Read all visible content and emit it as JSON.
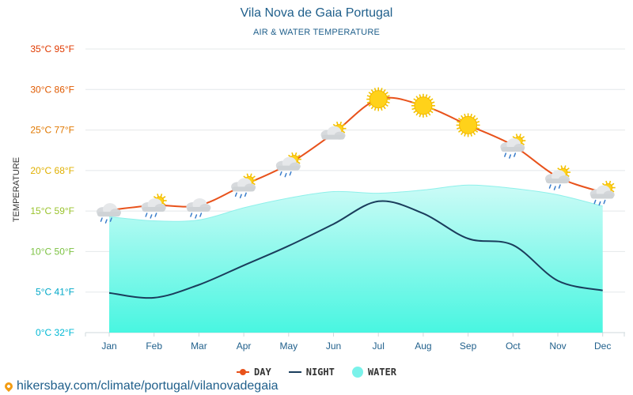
{
  "chart_data": {
    "type": "line",
    "title": "Vila Nova de Gaia Portugal",
    "subtitle": "AIR & WATER TEMPERATURE",
    "ylabel": "TEMPERATURE",
    "xlabel": "",
    "categories": [
      "Jan",
      "Feb",
      "Mar",
      "Apr",
      "May",
      "Jun",
      "Jul",
      "Aug",
      "Sep",
      "Oct",
      "Nov",
      "Dec"
    ],
    "ylim": [
      0,
      35
    ],
    "y_ticks": [
      {
        "value": 0,
        "label": "0°C 32°F",
        "color": "#00b8d4"
      },
      {
        "value": 5,
        "label": "5°C 41°F",
        "color": "#00a8c8"
      },
      {
        "value": 10,
        "label": "10°C 50°F",
        "color": "#7cc242"
      },
      {
        "value": 15,
        "label": "15°C 59°F",
        "color": "#9ac32d"
      },
      {
        "value": 20,
        "label": "20°C 68°F",
        "color": "#e0b000"
      },
      {
        "value": 25,
        "label": "25°C 77°F",
        "color": "#e07800"
      },
      {
        "value": 30,
        "label": "30°C 86°F",
        "color": "#e05a00"
      },
      {
        "value": 35,
        "label": "35°C 95°F",
        "color": "#e03a00"
      }
    ],
    "series": [
      {
        "name": "DAY",
        "color": "#e8521b",
        "values": [
          15.1,
          15.7,
          15.7,
          18.2,
          20.8,
          24.6,
          28.8,
          28.0,
          25.6,
          23.1,
          19.2,
          17.3
        ]
      },
      {
        "name": "NIGHT",
        "color": "#1a3d5c",
        "values": [
          4.9,
          4.3,
          5.9,
          8.3,
          10.7,
          13.4,
          16.2,
          14.7,
          11.6,
          10.8,
          6.4,
          5.2
        ]
      },
      {
        "name": "WATER",
        "color": "#7af2ea",
        "values": [
          14.3,
          13.8,
          13.9,
          15.4,
          16.6,
          17.4,
          17.2,
          17.6,
          18.2,
          17.8,
          17.0,
          15.6
        ]
      }
    ],
    "weather_icons": [
      "light-rain",
      "partly-cloudy-rain",
      "light-rain",
      "partly-cloudy-rain",
      "partly-cloudy-rain",
      "partly-cloudy",
      "sunny",
      "sunny",
      "sunny",
      "partly-cloudy-rain",
      "partly-cloudy-rain",
      "partly-cloudy-rain"
    ],
    "grid": true,
    "legend_position": "bottom-center"
  },
  "legend": {
    "day": "DAY",
    "night": "NIGHT",
    "water": "WATER"
  },
  "footer": {
    "url": "hikersbay.com/climate/portugal/vilanovadegaia"
  }
}
